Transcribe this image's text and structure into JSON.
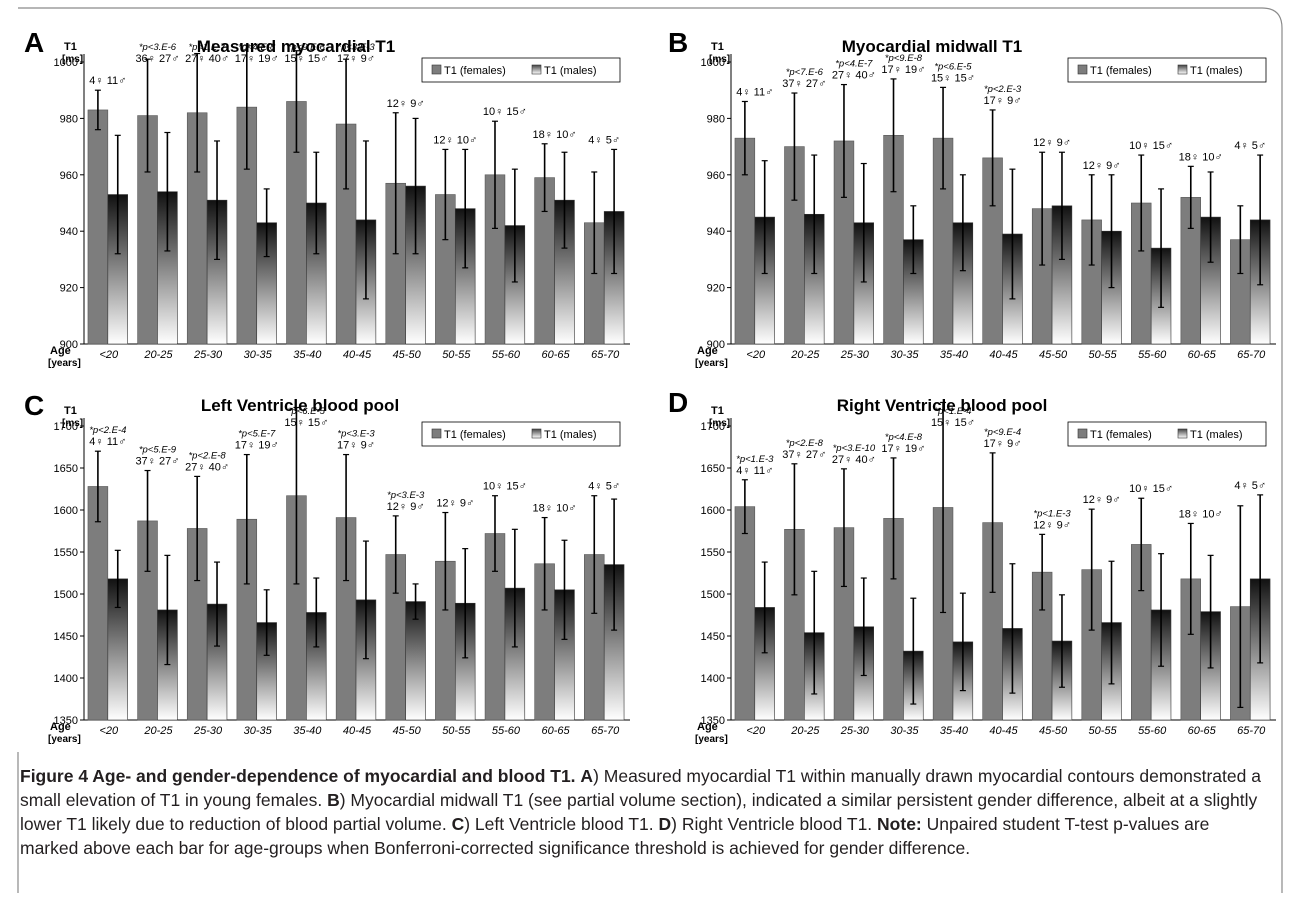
{
  "legend": {
    "females": "T1 (females)",
    "males": "T1 (males)"
  },
  "colors": {
    "female_bar": "#7d7d7d",
    "male_gradient_dark": "#111111",
    "male_gradient_light": "#ffffff",
    "axis": "#000000",
    "frame": "#888888"
  },
  "axis_text": {
    "y_unit_line1": "T1",
    "y_unit_line2": "[ms]",
    "x_unit_line1": "Age",
    "x_unit_line2": "[years]"
  },
  "female_symbol": "♀",
  "male_symbol": "♂",
  "caption": {
    "fig_label": "Figure 4 Age- and gender-dependence of myocardial and blood T1.",
    "a_letter": "A",
    "a_text": ") Measured myocardial T1 within manually drawn myocardial contours demonstrated a small elevation of T1 in young females.",
    "b_letter": "B",
    "b_text": ") Myocardial midwall T1 (see partial volume section), indicated a similar persistent gender difference, albeit at a slightly lower T1 likely due to reduction of blood partial volume.",
    "c_letter": "C",
    "c_text": ") Left Ventricle blood T1.",
    "d_letter": "D",
    "d_text": ") Right Ventricle blood T1.",
    "note_label": "Note:",
    "note_text": "Unpaired student T-test p-values are marked above each bar for age-groups when Bonferroni-corrected significance threshold is achieved for gender difference."
  },
  "chart_data": [
    {
      "type": "bar",
      "panel": "A",
      "title": "Measured myocardial T1",
      "ylabel": "T1 [ms]",
      "xlabel": "Age [years]",
      "ylim": [
        900,
        1000
      ],
      "yticks": [
        900,
        920,
        940,
        960,
        980,
        1000
      ],
      "categories": [
        "<20",
        "20-25",
        "25-30",
        "30-35",
        "35-40",
        "40-45",
        "45-50",
        "50-55",
        "55-60",
        "60-65",
        "65-70"
      ],
      "counts_female": [
        "4",
        "36",
        "27",
        "17",
        "15",
        "17",
        "12",
        "12",
        "10",
        "18",
        "4"
      ],
      "counts_male": [
        "11",
        "27",
        "40",
        "19",
        "15",
        "9",
        "9",
        "10",
        "15",
        "10",
        "5"
      ],
      "pvalues": [
        "",
        "*p<3.E-6",
        "*p<1.E-7",
        "*p<4.E-8",
        "*p<9.E-6",
        "*p<3.E-3",
        "",
        "",
        "",
        "",
        ""
      ],
      "series": [
        {
          "name": "T1 (females)",
          "values": [
            983,
            981,
            982,
            984,
            986,
            978,
            957,
            953,
            960,
            959,
            943
          ],
          "errors": [
            7,
            20,
            21,
            22,
            18,
            23,
            25,
            16,
            19,
            12,
            18
          ]
        },
        {
          "name": "T1 (males)",
          "values": [
            953,
            954,
            951,
            943,
            950,
            944,
            956,
            948,
            942,
            951,
            947
          ],
          "errors": [
            21,
            21,
            21,
            12,
            18,
            28,
            24,
            21,
            20,
            17,
            22
          ]
        }
      ],
      "legend_position": "top-right"
    },
    {
      "type": "bar",
      "panel": "B",
      "title": "Myocardial midwall T1",
      "ylabel": "T1 [ms]",
      "xlabel": "Age [years]",
      "ylim": [
        900,
        1000
      ],
      "yticks": [
        900,
        920,
        940,
        960,
        980,
        1000
      ],
      "categories": [
        "<20",
        "20-25",
        "25-30",
        "30-35",
        "35-40",
        "40-45",
        "45-50",
        "50-55",
        "55-60",
        "60-65",
        "65-70"
      ],
      "counts_female": [
        "4",
        "37",
        "27",
        "17",
        "15",
        "17",
        "12",
        "12",
        "10",
        "18",
        "4"
      ],
      "counts_male": [
        "11",
        "27",
        "40",
        "19",
        "15",
        "9",
        "9",
        "9",
        "15",
        "10",
        "5"
      ],
      "pvalues": [
        "",
        "*p<7.E-6",
        "*p<4.E-7",
        "*p<9.E-8",
        "*p<6.E-5",
        "*p<2.E-3",
        "",
        "",
        "",
        "",
        ""
      ],
      "series": [
        {
          "name": "T1 (females)",
          "values": [
            973,
            970,
            972,
            974,
            973,
            966,
            948,
            944,
            950,
            952,
            937
          ],
          "errors": [
            13,
            19,
            20,
            20,
            18,
            17,
            20,
            16,
            17,
            11,
            12
          ]
        },
        {
          "name": "T1 (males)",
          "values": [
            945,
            946,
            943,
            937,
            943,
            939,
            949,
            940,
            934,
            945,
            944
          ],
          "errors": [
            20,
            21,
            21,
            12,
            17,
            23,
            19,
            20,
            21,
            16,
            23
          ]
        }
      ],
      "legend_position": "top-right"
    },
    {
      "type": "bar",
      "panel": "C",
      "title": "Left Ventricle blood pool",
      "ylabel": "T1 [ms]",
      "xlabel": "Age [years]",
      "ylim": [
        1350,
        1700
      ],
      "yticks": [
        1350,
        1400,
        1450,
        1500,
        1550,
        1600,
        1650,
        1700
      ],
      "categories": [
        "<20",
        "20-25",
        "25-30",
        "30-35",
        "35-40",
        "40-45",
        "45-50",
        "50-55",
        "55-60",
        "60-65",
        "65-70"
      ],
      "counts_female": [
        "4",
        "37",
        "27",
        "17",
        "15",
        "17",
        "12",
        "12",
        "10",
        "18",
        "4"
      ],
      "counts_male": [
        "11",
        "27",
        "40",
        "19",
        "15",
        "9",
        "9",
        "9",
        "15",
        "10",
        "5"
      ],
      "pvalues": [
        "*p<2.E-4",
        "*p<5.E-9",
        "*p<2.E-8",
        "*p<5.E-7",
        "*p<6.E-5",
        "*p<3.E-3",
        "*p<3.E-3",
        "",
        "",
        "",
        ""
      ],
      "series": [
        {
          "name": "T1 (females)",
          "values": [
            1628,
            1587,
            1578,
            1589,
            1617,
            1591,
            1547,
            1539,
            1572,
            1536,
            1547
          ],
          "errors": [
            42,
            60,
            62,
            77,
            105,
            75,
            46,
            58,
            45,
            55,
            70
          ]
        },
        {
          "name": "T1 (males)",
          "values": [
            1518,
            1481,
            1488,
            1466,
            1478,
            1493,
            1491,
            1489,
            1507,
            1505,
            1535
          ],
          "errors": [
            34,
            65,
            50,
            39,
            41,
            70,
            21,
            65,
            70,
            59,
            78
          ]
        }
      ],
      "legend_position": "top-right"
    },
    {
      "type": "bar",
      "panel": "D",
      "title": "Right Ventricle blood pool",
      "ylabel": "T1 [ms]",
      "xlabel": "Age [years]",
      "ylim": [
        1350,
        1700
      ],
      "yticks": [
        1350,
        1400,
        1450,
        1500,
        1550,
        1600,
        1650,
        1700
      ],
      "categories": [
        "<20",
        "20-25",
        "25-30",
        "30-35",
        "35-40",
        "40-45",
        "45-50",
        "50-55",
        "55-60",
        "60-65",
        "65-70"
      ],
      "counts_female": [
        "4",
        "37",
        "27",
        "17",
        "15",
        "17",
        "12",
        "12",
        "10",
        "18",
        "4"
      ],
      "counts_male": [
        "11",
        "27",
        "40",
        "19",
        "15",
        "9",
        "9",
        "9",
        "15",
        "10",
        "5"
      ],
      "pvalues": [
        "*p<1.E-3",
        "*p<2.E-8",
        "*p<3.E-10",
        "*p<4.E-8",
        "*p<1.E-4",
        "*p<9.E-4",
        "*p<1.E-3",
        "",
        "",
        "",
        ""
      ],
      "series": [
        {
          "name": "T1 (females)",
          "values": [
            1604,
            1577,
            1579,
            1590,
            1603,
            1585,
            1526,
            1529,
            1559,
            1518,
            1485
          ],
          "errors": [
            32,
            78,
            70,
            72,
            125,
            83,
            45,
            72,
            55,
            66,
            120
          ]
        },
        {
          "name": "T1 (males)",
          "values": [
            1484,
            1454,
            1461,
            1432,
            1443,
            1459,
            1444,
            1466,
            1481,
            1479,
            1518
          ],
          "errors": [
            54,
            73,
            58,
            63,
            58,
            77,
            55,
            73,
            67,
            67,
            100
          ]
        }
      ],
      "legend_position": "top-right"
    }
  ]
}
